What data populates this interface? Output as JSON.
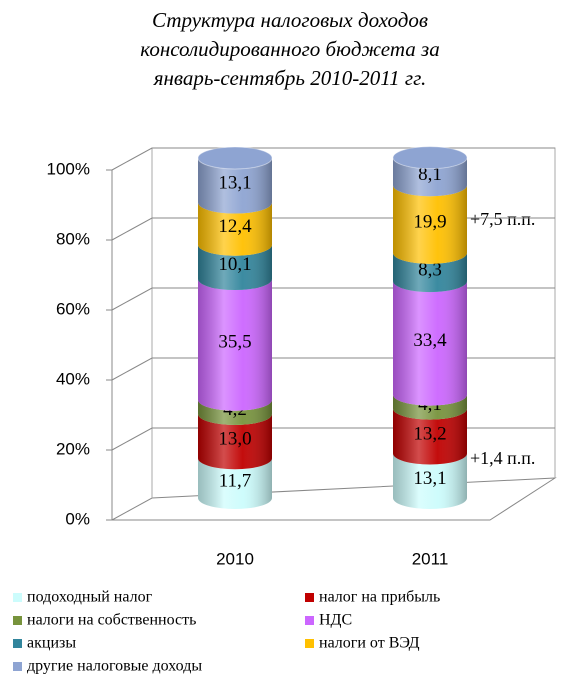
{
  "chart_data": {
    "type": "stacked_cylinder",
    "title_lines": [
      "Структура налоговых доходов",
      "консолидированного бюджета за",
      "январь-сентябрь 2010-2011 гг."
    ],
    "categories": [
      "2010",
      "2011"
    ],
    "series": [
      {
        "name": "подоходный налог",
        "color": "#ccfcfc",
        "values": [
          11.7,
          13.1
        ],
        "value_labels": [
          "11,7",
          "13,1"
        ]
      },
      {
        "name": "налог на прибыль",
        "color": "#c00000",
        "values": [
          13.0,
          13.2
        ],
        "value_labels": [
          "13,0",
          "13,2"
        ]
      },
      {
        "name": "налоги на собственность",
        "color": "#77933c",
        "values": [
          4.2,
          4.1
        ],
        "value_labels": [
          "4,2",
          "4,1"
        ]
      },
      {
        "name": "НДС",
        "color": "#cc66ff",
        "values": [
          35.5,
          33.4
        ],
        "value_labels": [
          "35,5",
          "33,4"
        ]
      },
      {
        "name": "акцизы",
        "color": "#31859c",
        "values": [
          10.1,
          8.3
        ],
        "value_labels": [
          "10,1",
          "8,3"
        ]
      },
      {
        "name": "налоги от ВЭД",
        "color": "#ffc000",
        "values": [
          12.4,
          19.9
        ],
        "value_labels": [
          "12,4",
          "19,9"
        ]
      },
      {
        "name": "другие налоговые доходы",
        "color": "#8ea4d2",
        "values": [
          13.1,
          8.1
        ],
        "value_labels": [
          "13,1",
          "8,1"
        ]
      }
    ],
    "annotations": [
      "+7,5 п.п.",
      "+1,4 п.п."
    ],
    "ylim": [
      0,
      100
    ],
    "yticks": [
      {
        "value": 0,
        "label": "0%"
      },
      {
        "value": 20,
        "label": "20%"
      },
      {
        "value": 40,
        "label": "40%"
      },
      {
        "value": 60,
        "label": "60%"
      },
      {
        "value": 80,
        "label": "80%"
      },
      {
        "value": 100,
        "label": "100%"
      }
    ],
    "grid": true
  }
}
